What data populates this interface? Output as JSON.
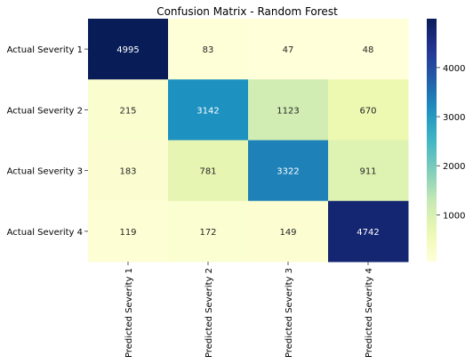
{
  "chart_data": {
    "type": "heatmap",
    "title": "Confusion Matrix - Random Forest",
    "row_labels": [
      "Actual Severity 1",
      "Actual Severity 2",
      "Actual Severity 3",
      "Actual Severity 4"
    ],
    "col_labels": [
      "Predicted Severity 1",
      "Predicted Severity 2",
      "Predicted Severity 3",
      "Predicted Severity 4"
    ],
    "values": [
      [
        4995,
        83,
        47,
        48
      ],
      [
        215,
        3142,
        1123,
        670
      ],
      [
        183,
        781,
        3322,
        911
      ],
      [
        119,
        172,
        149,
        4742
      ]
    ],
    "colormap": "YlGnBu",
    "colorbar": {
      "range": [
        47,
        4995
      ],
      "ticks": [
        1000,
        2000,
        3000,
        4000
      ],
      "tick_labels": [
        "1000",
        "2000",
        "3000",
        "4000"
      ]
    },
    "colors": {
      "low": "#ffffd9",
      "high": "#081d58",
      "text_dark": "#262626",
      "text_light": "#ffffff"
    }
  }
}
